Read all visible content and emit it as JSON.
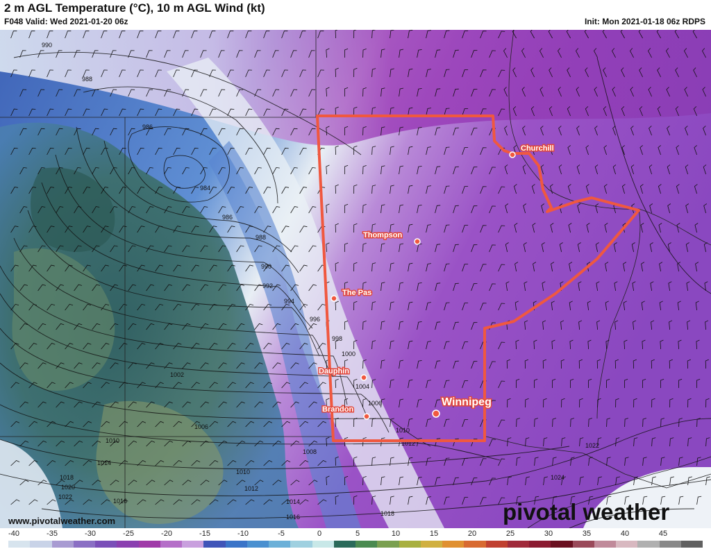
{
  "header": {
    "title": "2 m AGL Temperature (°C), 10 m AGL Wind (kt)",
    "valid": "F048 Valid: Wed 2021-01-20 06z",
    "init": "Init: Mon 2021-01-18 06z RDPS"
  },
  "footer": {
    "url": "www.pivotalweather.com",
    "brand": "pivotal weather"
  },
  "cities": [
    {
      "name": "Churchill"
    },
    {
      "name": "Thompson"
    },
    {
      "name": "The Pas"
    },
    {
      "name": "Dauphin"
    },
    {
      "name": "Brandon"
    },
    {
      "name": "Winnipeg"
    }
  ],
  "isobars": [
    "990",
    "988",
    "986",
    "984",
    "986",
    "988",
    "990",
    "992",
    "994",
    "996",
    "998",
    "1000",
    "1002",
    "1004",
    "1006",
    "1006",
    "1008",
    "1010",
    "1010",
    "1012",
    "1010",
    "1014",
    "1018",
    "1020",
    "1022",
    "1016",
    "1012",
    "1014",
    "1016",
    "1018",
    "1022",
    "1024"
  ],
  "colorbar": {
    "labels": [
      "-40",
      "-35",
      "-30",
      "-25",
      "-20",
      "-15",
      "-10",
      "-5",
      "0",
      "5",
      "10",
      "15",
      "20",
      "25",
      "30",
      "35",
      "40",
      "45"
    ],
    "colors": [
      "#d7e4ee",
      "#c9d3e8",
      "#a89bd2",
      "#8a6fc4",
      "#7a4fb8",
      "#8a3fb0",
      "#a03aa8",
      "#b56fc8",
      "#c9a0de",
      "#4055b8",
      "#3a74c8",
      "#4a90d0",
      "#6bb0d8",
      "#9fd0e0",
      "#c8e8e8",
      "#2a6a5a",
      "#4a8a50",
      "#7aa050",
      "#a8b040",
      "#d0b040",
      "#e09030",
      "#d86a30",
      "#c04030",
      "#a02a3a",
      "#8a1a30",
      "#6a1020",
      "#9a4a5a",
      "#c08a9a",
      "#d8b8c0",
      "#b0b0b0",
      "#888888",
      "#606060"
    ]
  }
}
